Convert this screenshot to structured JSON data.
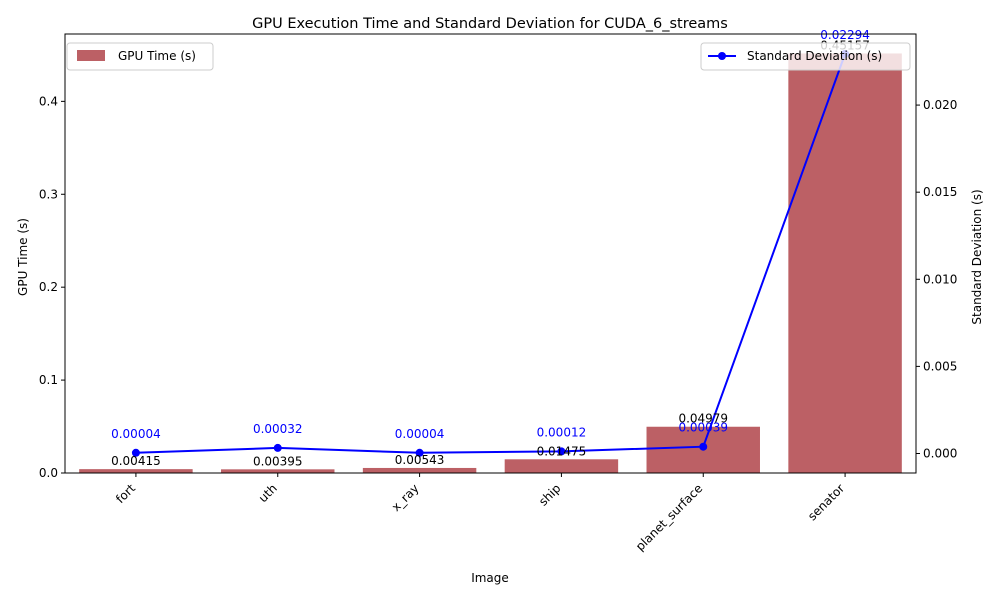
{
  "chart_data": {
    "type": "bar",
    "title": "GPU Execution Time and Standard Deviation for CUDA_6_streams",
    "xlabel": "Image",
    "ylabel": "GPU Time (s)",
    "y2label": "Standard Deviation (s)",
    "categories": [
      "fort",
      "uth",
      "x_ray",
      "ship",
      "planet_surface",
      "senator"
    ],
    "ylim": [
      0,
      0.4725
    ],
    "y2lim": [
      -0.00112,
      0.02408
    ],
    "yticks": [
      0.0,
      0.1,
      0.2,
      0.3,
      0.4
    ],
    "y2ticks": [
      0.0,
      0.005,
      0.01,
      0.015,
      0.02
    ],
    "ytick_labels": [
      "0.0",
      "0.1",
      "0.2",
      "0.3",
      "0.4"
    ],
    "y2tick_labels": [
      "0.000",
      "0.005",
      "0.010",
      "0.015",
      "0.020"
    ],
    "series": [
      {
        "name": "GPU Time (s)",
        "kind": "bar",
        "axis": "left",
        "color": "#bc6065",
        "values": [
          0.00415,
          0.00395,
          0.00543,
          0.01475,
          0.04979,
          0.45157
        ],
        "labels": [
          "0.00415",
          "0.00395",
          "0.00543",
          "0.01475",
          "0.04979",
          "0.45157"
        ]
      },
      {
        "name": "Standard Deviation (s)",
        "kind": "line",
        "axis": "right",
        "color": "#0000ff",
        "values": [
          4e-05,
          0.00032,
          4e-05,
          0.00012,
          0.00039,
          0.02294
        ],
        "labels": [
          "0.00004",
          "0.00032",
          "0.00004",
          "0.00012",
          "0.00039",
          "0.02294"
        ]
      }
    ],
    "legend": [
      {
        "label": "GPU Time (s)",
        "placement": "upper-left"
      },
      {
        "label": "Standard Deviation (s)",
        "placement": "upper-right"
      }
    ],
    "grid": false
  }
}
